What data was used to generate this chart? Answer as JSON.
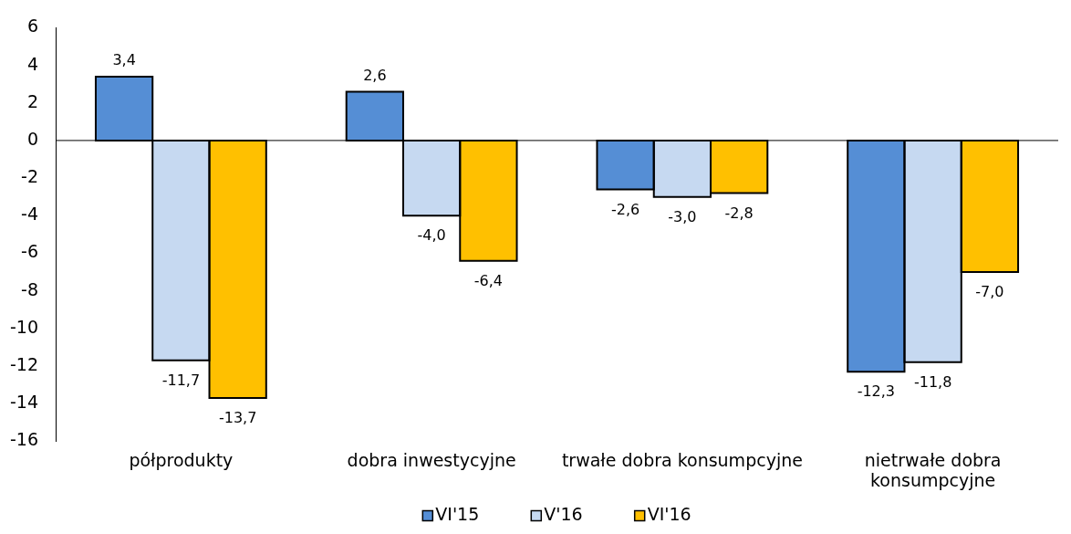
{
  "chart_data": {
    "type": "bar",
    "categories": [
      "półprodukty",
      "dobra inwestycyjne",
      "trwałe dobra konsumpcyjne",
      "nietrwałe dobra konsumpcyjne"
    ],
    "series": [
      {
        "name": "VI'15",
        "color": "#558ed5",
        "values": [
          3.4,
          2.6,
          -2.6,
          -12.3
        ],
        "value_labels": [
          "3,4",
          "2,6",
          "-2,6",
          "-12,3"
        ]
      },
      {
        "name": "V'16",
        "color": "#c6d9f1",
        "values": [
          -11.7,
          -4.0,
          -3.0,
          -11.8
        ],
        "value_labels": [
          "-11,7",
          "-4,0",
          "-3,0",
          "-11,8"
        ]
      },
      {
        "name": "VI'16",
        "color": "#ffc000",
        "values": [
          -13.7,
          -6.4,
          -2.8,
          -7.0
        ],
        "value_labels": [
          "-13,7",
          "-6,4",
          "-2,8",
          "-7,0"
        ]
      }
    ],
    "ylim": [
      -16,
      6
    ],
    "yticks": [
      -16,
      -14,
      -12,
      -10,
      -8,
      -6,
      -4,
      -2,
      0,
      2,
      4,
      6
    ],
    "legend": "bottom"
  }
}
